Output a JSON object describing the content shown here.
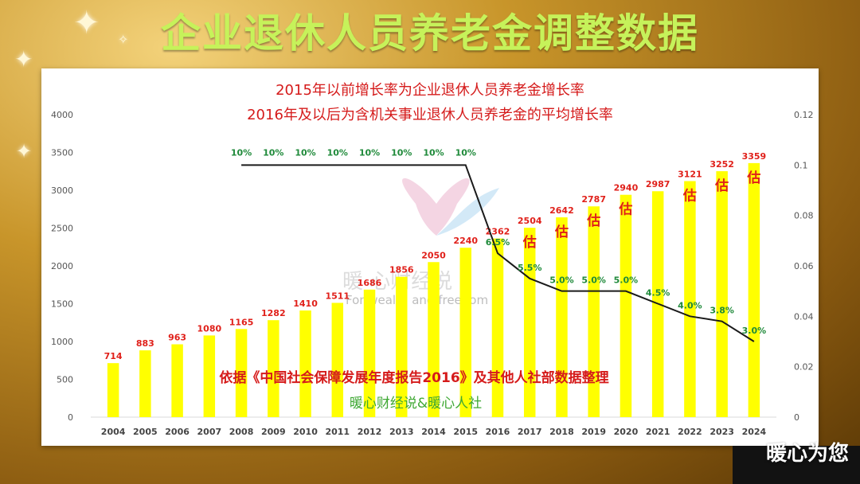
{
  "page": {
    "title": "企业退休人员养老金调整数据",
    "brand_mark": "暖心为您"
  },
  "watermark": {
    "cn": "暖 心财经说",
    "en": "For wealth and freedom"
  },
  "chart_data": {
    "type": "bar",
    "subtitle_lines": [
      "2015年以前增长率为企业退休人员养老金增长率",
      "2016年及以后为含机关事业退休人员养老金的平均增长率"
    ],
    "categories": [
      "2004",
      "2005",
      "2006",
      "2007",
      "2008",
      "2009",
      "2010",
      "2011",
      "2012",
      "2013",
      "2014",
      "2015",
      "2016",
      "2017",
      "2018",
      "2019",
      "2020",
      "2021",
      "2022",
      "2023",
      "2024"
    ],
    "bar_series": {
      "values": [
        714,
        883,
        963,
        1080,
        1165,
        1282,
        1410,
        1511,
        1686,
        1856,
        2050,
        2240,
        2362,
        2504,
        2642,
        2787,
        2940,
        2987,
        3121,
        3252,
        3359
      ],
      "color": "#ffff00",
      "label_color": "#e0201a"
    },
    "estimate_label": "估",
    "estimate_categories": [
      "2017",
      "2018",
      "2019",
      "2020",
      "2022",
      "2023",
      "2024"
    ],
    "line_series": {
      "start_category": "2008",
      "values": [
        0.1,
        0.1,
        0.1,
        0.1,
        0.1,
        0.1,
        0.1,
        0.1,
        0.065,
        0.055,
        0.05,
        0.05,
        0.05,
        0.045,
        0.04,
        0.038,
        0.03
      ],
      "labels": [
        "10%",
        "10%",
        "10%",
        "10%",
        "10%",
        "10%",
        "10%",
        "10%",
        "6.5%",
        "5.5%",
        "5.0%",
        "5.0%",
        "5.0%",
        "4.5%",
        "4.0%",
        "3.8%",
        "3.0%"
      ],
      "color": "#1a1a1a",
      "label_color": "#1f8a3a"
    },
    "y_left": {
      "ticks": [
        "0",
        "500",
        "1000",
        "1500",
        "2000",
        "2500",
        "3000",
        "3500",
        "4000"
      ],
      "range": [
        0,
        4000
      ]
    },
    "y_right": {
      "ticks": [
        "0",
        "0.02",
        "0.04",
        "0.06",
        "0.08",
        "0.1",
        "0.12"
      ],
      "range": [
        0,
        0.12
      ]
    },
    "source_note": "依据《中国社会保障发展年度报告2016》及其他人社部数据整理",
    "credit_note": "暖心财经说&暖心人社",
    "grid": false,
    "legend": "none"
  }
}
